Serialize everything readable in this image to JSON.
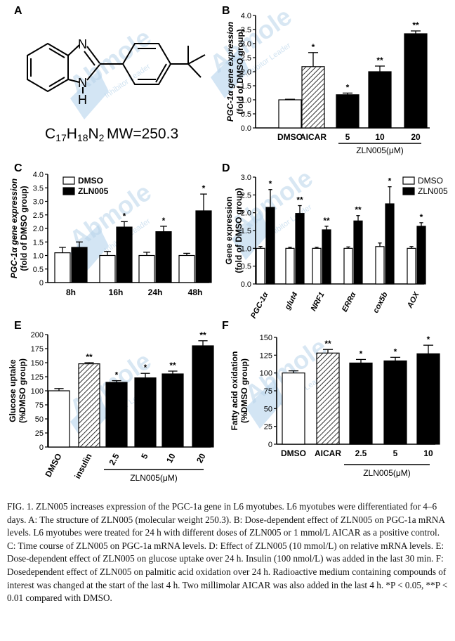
{
  "panels": {
    "A": {
      "letter": "A",
      "atoms": {
        "n_top": "N",
        "n_bottom": "N",
        "h": "H"
      },
      "formula": {
        "c": "C",
        "c_sub": "17",
        "h": "H",
        "h_sub": "18",
        "n": "N",
        "n_sub": "2"
      },
      "mw": "MW=250.3"
    },
    "B": {
      "letter": "B",
      "group_label": "ZLN005(μM)"
    },
    "C": {
      "letter": "C"
    },
    "D": {
      "letter": "D"
    },
    "E": {
      "letter": "E",
      "group_label": "ZLN005(μM)"
    },
    "F": {
      "letter": "F",
      "group_label": "ZLN005(μM)"
    }
  },
  "watermark": {
    "brand": "Abmole",
    "tagline": "Inhibitor Leader"
  },
  "chart_data": [
    {
      "id": "B",
      "type": "bar",
      "ylabel_lines": [
        "PGC-1α gene expression",
        "(fold of DMSO group)"
      ],
      "ylim": [
        0,
        4.0
      ],
      "yticks": [
        0,
        0.5,
        1.0,
        1.5,
        2.0,
        2.5,
        3.0,
        3.5,
        4.0
      ],
      "ytick_labels": [
        "0.0",
        "0.5",
        "1.0",
        "1.5",
        "2.0",
        "2.5",
        "3.0",
        "3.5",
        "4.0"
      ],
      "categories": [
        "DMSO",
        "AICAR",
        "5",
        "10",
        "20"
      ],
      "values": [
        1.0,
        2.18,
        1.18,
        2.0,
        3.35
      ],
      "errors": [
        0.02,
        0.5,
        0.06,
        0.2,
        0.1
      ],
      "fills": [
        "white",
        "hatch",
        "black",
        "black",
        "black"
      ],
      "sig": [
        "",
        "*",
        "*",
        "**",
        "**"
      ]
    },
    {
      "id": "C",
      "type": "bar",
      "ylabel_lines": [
        "PGC-1α gene expression",
        "(fold of DMSO group)"
      ],
      "ylim": [
        0,
        4.0
      ],
      "yticks": [
        0,
        0.5,
        1.0,
        1.5,
        2.0,
        2.5,
        3.0,
        3.5,
        4.0
      ],
      "ytick_labels": [
        "0",
        "0.5",
        "1.0",
        "1.5",
        "2.0",
        "2.5",
        "3.0",
        "3.5",
        "4.0"
      ],
      "categories": [
        "8h",
        "16h",
        "24h",
        "48h"
      ],
      "legend": [
        "DMSO",
        "ZLN005"
      ],
      "series": [
        {
          "name": "DMSO",
          "values": [
            1.1,
            1.0,
            1.0,
            1.0
          ],
          "errors": [
            0.2,
            0.15,
            0.12,
            0.08
          ],
          "sig": [
            "",
            "",
            "",
            ""
          ]
        },
        {
          "name": "ZLN005",
          "values": [
            1.3,
            2.05,
            1.88,
            2.65
          ],
          "errors": [
            0.2,
            0.2,
            0.2,
            0.62
          ],
          "sig": [
            "",
            "*",
            "*",
            "*"
          ]
        }
      ]
    },
    {
      "id": "D",
      "type": "bar",
      "ylabel_lines": [
        "Gene expression",
        "(fold of DMSO group)"
      ],
      "ylim": [
        0,
        3.0
      ],
      "yticks": [
        0,
        0.5,
        1.0,
        1.5,
        2.0,
        2.5,
        3.0
      ],
      "ytick_labels": [
        "0.0",
        "0.5",
        "1.0",
        "1.5",
        "2.0",
        "2.5",
        "3.0"
      ],
      "categories": [
        "PGC-1α",
        "glut4",
        "NRF1",
        "ERRα",
        "cox5b",
        "AOX"
      ],
      "legend": [
        "DMSO",
        "ZLN005"
      ],
      "series": [
        {
          "name": "DMSO",
          "values": [
            1.0,
            1.0,
            1.0,
            1.0,
            1.05,
            1.0
          ],
          "errors": [
            0.05,
            0.03,
            0.03,
            0.04,
            0.1,
            0.05
          ],
          "sig": [
            "",
            "",
            "",
            "",
            "",
            ""
          ]
        },
        {
          "name": "ZLN005",
          "values": [
            2.15,
            1.98,
            1.52,
            1.77,
            2.25,
            1.62
          ],
          "errors": [
            0.5,
            0.22,
            0.1,
            0.15,
            0.48,
            0.1
          ],
          "sig": [
            "*",
            "**",
            "**",
            "**",
            "*",
            "*"
          ]
        }
      ]
    },
    {
      "id": "E",
      "type": "bar",
      "ylabel_lines": [
        "Glucose uptake",
        "(%DMSO group)"
      ],
      "ylim": [
        0,
        200
      ],
      "yticks": [
        0,
        25,
        50,
        75,
        100,
        125,
        150,
        175,
        200
      ],
      "ytick_labels": [
        "0",
        "25",
        "50",
        "75",
        "100",
        "125",
        "150",
        "175",
        "200"
      ],
      "categories": [
        "DMSO",
        "insulin",
        "2.5",
        "5",
        "10",
        "20"
      ],
      "values": [
        100,
        148,
        115,
        123,
        130,
        180
      ],
      "errors": [
        4,
        2,
        3,
        8,
        5,
        9
      ],
      "fills": [
        "white",
        "hatch",
        "black",
        "black",
        "black",
        "black"
      ],
      "sig": [
        "",
        "**",
        "*",
        "*",
        "**",
        "**"
      ]
    },
    {
      "id": "F",
      "type": "bar",
      "ylabel_lines": [
        "Fatty acid oxidation",
        "(%DMSO group)"
      ],
      "ylim": [
        0,
        150
      ],
      "yticks": [
        0,
        25,
        50,
        75,
        100,
        125,
        150
      ],
      "ytick_labels": [
        "0",
        "25",
        "50",
        "75",
        "100",
        "125",
        "150"
      ],
      "categories": [
        "DMSO",
        "AICAR",
        "2.5",
        "5",
        "10"
      ],
      "values": [
        100,
        128,
        114,
        117,
        127
      ],
      "errors": [
        3,
        5,
        5,
        5,
        12
      ],
      "fills": [
        "white",
        "hatch",
        "black",
        "black",
        "black"
      ],
      "sig": [
        "",
        "**",
        "*",
        "*",
        "*"
      ]
    }
  ],
  "caption": "FIG. 1. ZLN005 increases expression of the PGC-1a gene in L6 myotubes. L6 myotubes were differentiated for 4–6 days. A: The structure of ZLN005 (molecular weight 250.3). B: Dose-dependent effect of ZLN005 on PGC-1a mRNA levels. L6 myotubes were treated for 24 h with different doses of ZLN005 or 1 mmol/L AICAR as a positive control. C: Time course of ZLN005 on PGC-1a mRNA levels. D: Effect of ZLN005 (10 mmol/L) on relative mRNA levels. E: Dose-dependent effect of ZLN005 on glucose uptake over 24 h. Insulin (100 nmol/L) was added in the last 30 min. F: Dosedependent effect of ZLN005 on palmitic acid oxidation over 24 h. Radioactive medium containing compounds of interest was changed at the start of the last 4 h. Two millimolar AICAR was also added in the last 4 h. *P < 0.05, **P < 0.01 compared with DMSO."
}
